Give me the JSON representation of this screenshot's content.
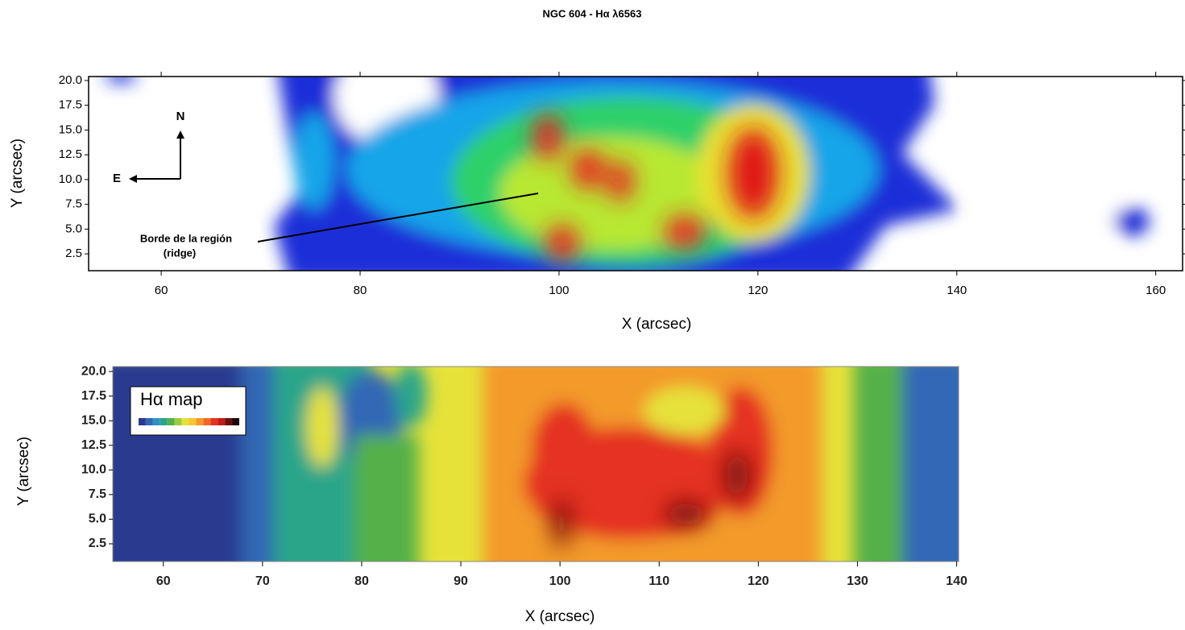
{
  "chart_data": [
    {
      "type": "contour",
      "title": "NGC 604 - Hα λ6563",
      "x_label": "X (arcsec)",
      "y_label": "Y (arcsec)",
      "xlim": [
        52.7,
        162.7
      ],
      "ylim": [
        0.8,
        20.4
      ],
      "xticks": [
        60,
        80,
        100,
        120,
        140,
        160
      ],
      "yticks": [
        2.5,
        {
          "value": 5,
          "label": "5.0"
        },
        7.5,
        {
          "value": 10,
          "label": "10.0"
        },
        12.5,
        {
          "value": 15,
          "label": "15.0"
        },
        17.5,
        {
          "value": 20,
          "label": "20.0"
        }
      ],
      "annotations": {
        "north": "N",
        "east": "E",
        "ridge_label": "Borde de la región",
        "ridge_note": "(ridge)"
      }
    },
    {
      "type": "contour",
      "x_label": "X (arcsec)",
      "y_label": "Y (arcsec)",
      "xlim": [
        54.9,
        140.2
      ],
      "ylim": [
        0.7,
        20.5
      ],
      "xticks": [
        60,
        70,
        80,
        90,
        100,
        110,
        120,
        130,
        140
      ],
      "yticks": [
        2.5,
        {
          "value": 5,
          "label": "5.0"
        },
        7.5,
        {
          "value": 10,
          "label": "10.0"
        },
        12.5,
        {
          "value": 15,
          "label": "15.0"
        },
        17.5,
        {
          "value": 20,
          "label": "20.0"
        }
      ],
      "legend_label": "Hα map",
      "colorscale": [
        "#2b3a8f",
        "#3267b5",
        "#2f93c0",
        "#2aa58a",
        "#55b04a",
        "#9ccb3f",
        "#e6e23a",
        "#f7c631",
        "#f39a2a",
        "#ee6a24",
        "#e53222",
        "#c41a1a",
        "#6e0d0d",
        "#1a0505"
      ]
    }
  ]
}
